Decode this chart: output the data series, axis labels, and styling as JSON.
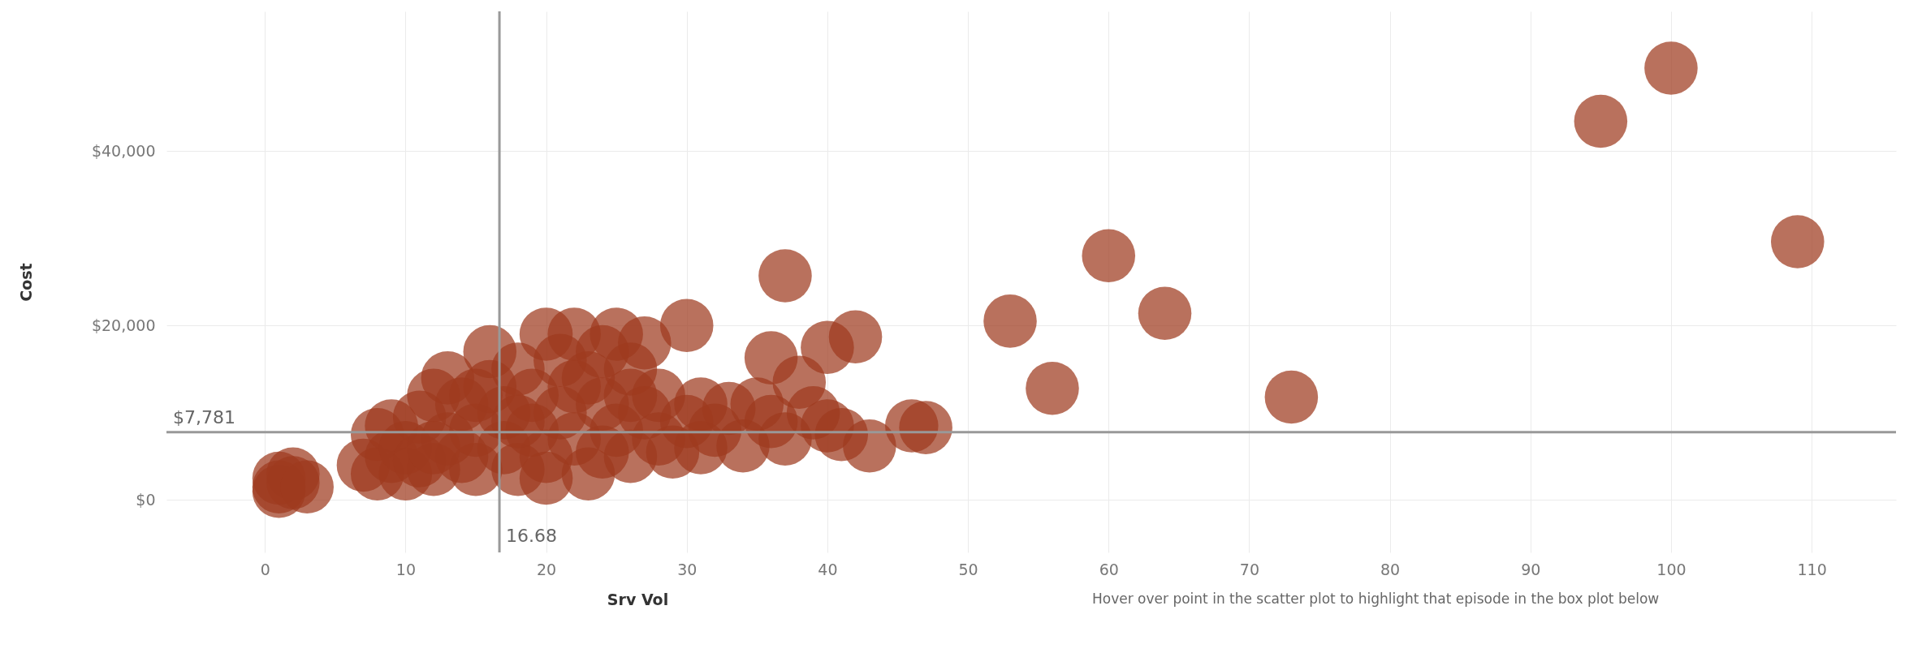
{
  "chart_data": {
    "type": "scatter",
    "xlabel": "Srv Vol",
    "ylabel": "Cost",
    "marker": "circle",
    "grid": true,
    "color": "#9e3a1f",
    "xlim": [
      -7,
      116
    ],
    "ylim": [
      -6000,
      56000
    ],
    "xticks": [
      0,
      10,
      20,
      30,
      40,
      50,
      60,
      70,
      80,
      90,
      100,
      110
    ],
    "yticks": [
      {
        "value": 0,
        "label": "$0"
      },
      {
        "value": 20000,
        "label": "$20,000"
      },
      {
        "value": 40000,
        "label": "$40,000"
      }
    ],
    "x": [
      1,
      1,
      2,
      2,
      1,
      3,
      7,
      8,
      8,
      9,
      9,
      10,
      10,
      11,
      11,
      12,
      12,
      13,
      13,
      14,
      14,
      15,
      15,
      16,
      16,
      17,
      17,
      18,
      18,
      19,
      19,
      20,
      20,
      21,
      21,
      22,
      22,
      23,
      23,
      24,
      24,
      25,
      25,
      26,
      26,
      27,
      27,
      28,
      28,
      29,
      30,
      31,
      31,
      32,
      33,
      34,
      35,
      36,
      36,
      37,
      37,
      38,
      39,
      40,
      40,
      41,
      42,
      43,
      46,
      47,
      30,
      20,
      12,
      15,
      18,
      22,
      24,
      26,
      53,
      56,
      60,
      64,
      73,
      95,
      100,
      109
    ],
    "values": [
      1500,
      1000,
      2000,
      3000,
      2500,
      1500,
      4000,
      7500,
      3000,
      5000,
      8500,
      3000,
      6000,
      4500,
      9500,
      12000,
      3500,
      14000,
      7000,
      5000,
      11000,
      3500,
      8000,
      17000,
      13000,
      6000,
      10000,
      15000,
      3500,
      8000,
      12000,
      19000,
      5000,
      16000,
      10000,
      19000,
      7000,
      14000,
      3000,
      11000,
      5500,
      19000,
      8000,
      15000,
      5000,
      18000,
      10000,
      7000,
      12000,
      5500,
      9000,
      11000,
      6000,
      8000,
      10500,
      6200,
      11000,
      16300,
      9000,
      7000,
      25700,
      13500,
      10000,
      17500,
      8500,
      7500,
      18700,
      6200,
      8500,
      8300,
      20000,
      2500,
      6000,
      12000,
      9000,
      13000,
      17000,
      12000,
      20500,
      12800,
      28000,
      21400,
      11800,
      43400,
      49500,
      29600
    ],
    "ref_lines": [
      {
        "axis": "x",
        "value": 16.68,
        "label": "16.68",
        "line_style": "solid",
        "color": "#999999"
      },
      {
        "axis": "y",
        "value": 7781,
        "label": "$7,781",
        "line_style": "solid",
        "color": "#999999"
      }
    ],
    "annotations": [
      "Hover over point in the scatter plot  to highlight that episode in the box plot below"
    ]
  }
}
